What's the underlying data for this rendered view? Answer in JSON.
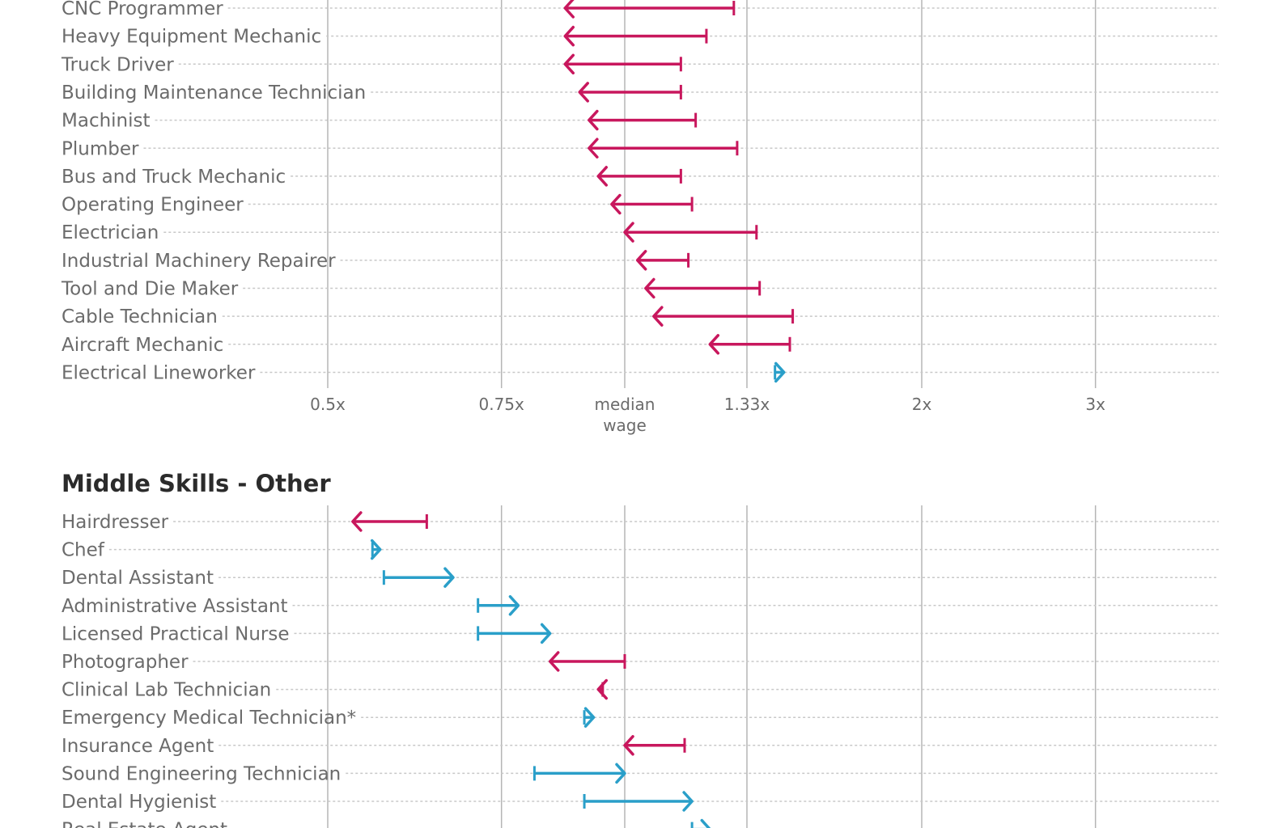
{
  "colors": {
    "decrease": "#c8175d",
    "increase": "#2a9fc9",
    "grid": "#b5b5b5",
    "guide": "#c8c8c8"
  },
  "chart_data": [
    {
      "type": "arrow-range",
      "title": "",
      "scale": "log",
      "ticks": [
        {
          "value": 0.5,
          "label": "0.5x"
        },
        {
          "value": 0.75,
          "label": "0.75x"
        },
        {
          "value": 1,
          "label": "median",
          "label2": "wage"
        },
        {
          "value": 1.33,
          "label": "1.33x"
        },
        {
          "value": 2,
          "label": "2x"
        },
        {
          "value": 3,
          "label": "3x"
        }
      ],
      "show_tick_labels": true,
      "rows": [
        {
          "label": "CNC Programmer",
          "from": 1.29,
          "to": 0.87
        },
        {
          "label": "Heavy Equipment Mechanic",
          "from": 1.21,
          "to": 0.87
        },
        {
          "label": "Truck Driver",
          "from": 1.14,
          "to": 0.87
        },
        {
          "label": "Building Maintenance Technician",
          "from": 1.14,
          "to": 0.9
        },
        {
          "label": "Machinist",
          "from": 1.18,
          "to": 0.92
        },
        {
          "label": "Plumber",
          "from": 1.3,
          "to": 0.92
        },
        {
          "label": "Bus and Truck Mechanic",
          "from": 1.14,
          "to": 0.94
        },
        {
          "label": "Operating Engineer",
          "from": 1.17,
          "to": 0.97
        },
        {
          "label": "Electrician",
          "from": 1.36,
          "to": 1.0
        },
        {
          "label": "Industrial Machinery Repairer",
          "from": 1.16,
          "to": 1.03
        },
        {
          "label": "Tool and Die Maker",
          "from": 1.37,
          "to": 1.05
        },
        {
          "label": "Cable Technician",
          "from": 1.48,
          "to": 1.07
        },
        {
          "label": "Aircraft Mechanic",
          "from": 1.47,
          "to": 1.22
        },
        {
          "label": "Electrical Lineworker",
          "from": 1.42,
          "to": 1.45
        }
      ]
    },
    {
      "type": "arrow-range",
      "title": "Middle Skills - Other",
      "scale": "log",
      "ticks": [
        {
          "value": 0.5
        },
        {
          "value": 0.75
        },
        {
          "value": 1
        },
        {
          "value": 1.33
        },
        {
          "value": 2
        },
        {
          "value": 3
        }
      ],
      "show_tick_labels": false,
      "rows": [
        {
          "label": "Hairdresser",
          "from": 0.63,
          "to": 0.53
        },
        {
          "label": "Chef",
          "from": 0.555,
          "to": 0.565
        },
        {
          "label": "Dental Assistant",
          "from": 0.57,
          "to": 0.67
        },
        {
          "label": "Administrative Assistant",
          "from": 0.71,
          "to": 0.78
        },
        {
          "label": "Licensed Practical Nurse",
          "from": 0.71,
          "to": 0.84
        },
        {
          "label": "Photographer",
          "from": 1.0,
          "to": 0.84
        },
        {
          "label": "Clinical Lab Technician",
          "from": 0.95,
          "to": 0.94
        },
        {
          "label": "Emergency Medical Technician*",
          "from": 0.91,
          "to": 0.93
        },
        {
          "label": "Insurance Agent",
          "from": 1.15,
          "to": 1.0
        },
        {
          "label": "Sound Engineering Technician",
          "from": 0.81,
          "to": 1.0
        },
        {
          "label": "Dental Hygienist",
          "from": 0.91,
          "to": 1.17
        },
        {
          "label": "Real Estate Agent",
          "from": 1.17,
          "to": 1.22
        }
      ]
    }
  ]
}
